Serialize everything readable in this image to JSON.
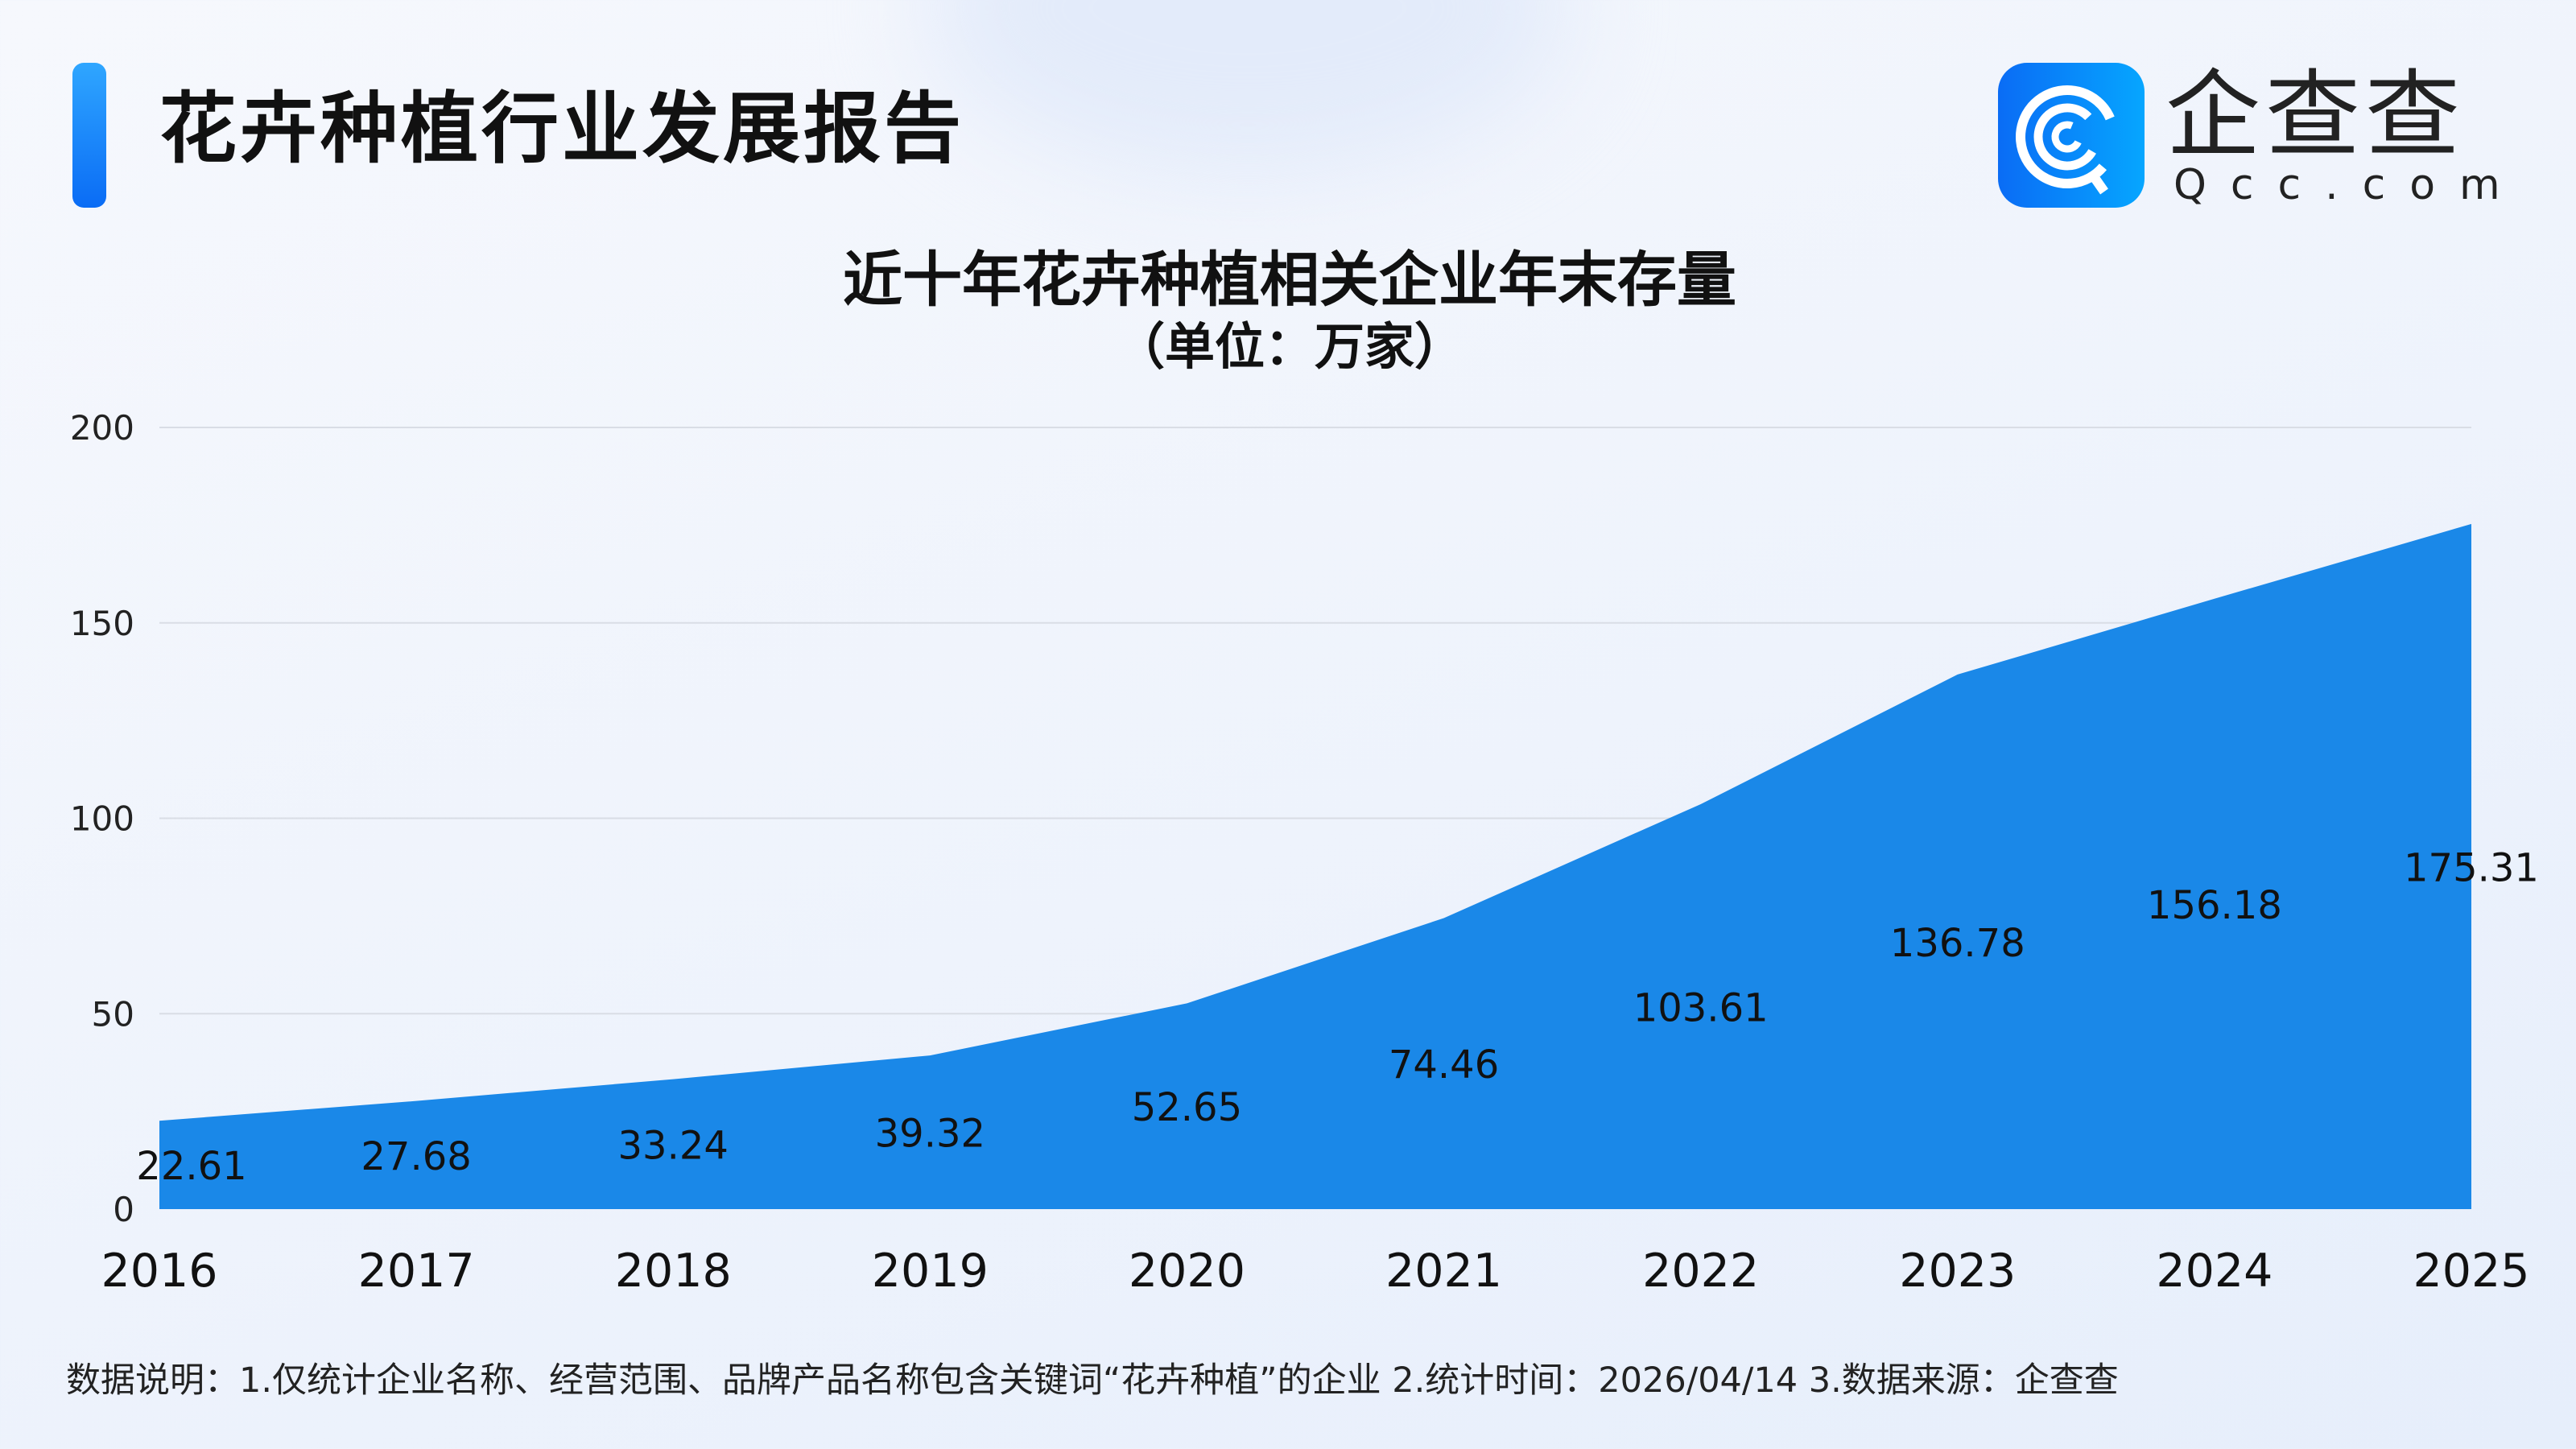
{
  "header": {
    "title": "花卉种植行业发展报告",
    "logo_cn": "企查查",
    "logo_en": "Qcc.com"
  },
  "colors": {
    "area": "#1a88e8",
    "accent": "#0a6cf5",
    "grid": "#d9dde5"
  },
  "chart_data": {
    "type": "area",
    "title": "近十年花卉种植相关企业年末存量",
    "subtitle": "（单位：万家）",
    "categories": [
      "2016",
      "2017",
      "2018",
      "2019",
      "2020",
      "2021",
      "2022",
      "2023",
      "2024",
      "2025"
    ],
    "values": [
      22.61,
      27.68,
      33.24,
      39.32,
      52.65,
      74.46,
      103.61,
      136.78,
      156.18,
      175.31
    ],
    "ylim": [
      0,
      200
    ],
    "yticks": [
      0,
      50,
      100,
      150,
      200
    ],
    "grid": true,
    "legend": "none"
  },
  "footnote": "数据说明：1.仅统计企业名称、经营范围、品牌产品名称包含关键词“花卉种植”的企业   2.统计时间：2026/04/14    3.数据来源：企查查"
}
